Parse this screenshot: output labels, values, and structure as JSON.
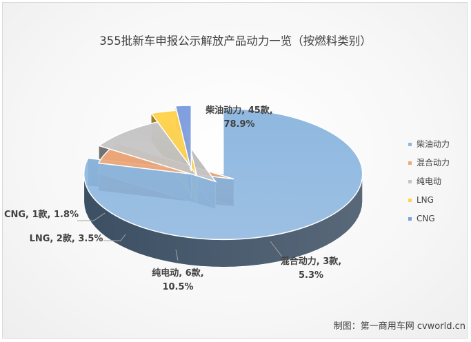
{
  "chart_data": {
    "type": "pie",
    "title": "355批新车申报公示解放产品动力一览（按燃料类别）",
    "slices": [
      {
        "name": "柴油动力",
        "count": "45款",
        "percent": 78.9,
        "percent_label": "78.9%",
        "color": "#8fb8e0",
        "side": "#3c4f63"
      },
      {
        "name": "混合动力",
        "count": "3款",
        "percent": 5.3,
        "percent_label": "5.3%",
        "color": "#f0a878",
        "side": "#5e3c24"
      },
      {
        "name": "纯电动",
        "count": "6款",
        "percent": 10.5,
        "percent_label": "10.5%",
        "color": "#c5c5c5",
        "side": "#727272"
      },
      {
        "name": "LNG",
        "count": "2款",
        "percent": 3.5,
        "percent_label": "3.5%",
        "color": "#ffd34f",
        "side": "#9e7f24"
      },
      {
        "name": "CNG",
        "count": "1款",
        "percent": 1.8,
        "percent_label": "1.8%",
        "color": "#7f9ee0",
        "side": "#3a4e7a"
      }
    ],
    "legend_position": "right",
    "style": "3d-exploded"
  },
  "credit": "制图：第一商用车网 cvworld.cn"
}
